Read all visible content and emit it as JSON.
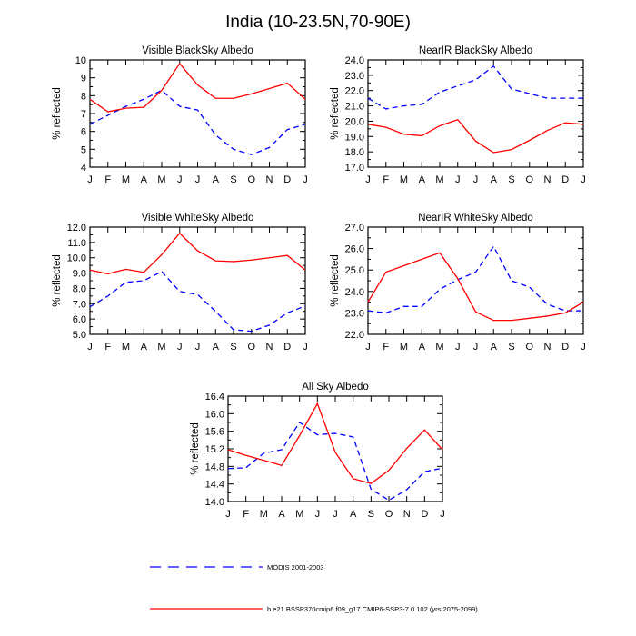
{
  "figure": {
    "title": "India (10-23.5N,70-90E)"
  },
  "legend": [
    {
      "label": "MODIS 2001-2003",
      "color": "#0000ff",
      "dash": "dashed"
    },
    {
      "label": "b.e21.BSSP370cmip6.f09_g17.CMIP6-SSP3-7.0.102 (yrs 2075-2099)",
      "color": "#ff0000",
      "dash": "solid"
    }
  ],
  "chart_data": [
    {
      "type": "line",
      "title": "Visible BlackSky Albedo",
      "ylabel": "% reflected",
      "xlabel": "",
      "categories": [
        "J",
        "F",
        "M",
        "A",
        "M",
        "J",
        "J",
        "A",
        "S",
        "O",
        "N",
        "D",
        "J"
      ],
      "ylim": [
        4,
        10
      ],
      "yticks": [
        4,
        5,
        6,
        7,
        8,
        9,
        10
      ],
      "ytick_labels": [
        "4",
        "5",
        "6",
        "7",
        "8",
        "9",
        "10"
      ],
      "grid": false,
      "series": [
        {
          "color": "#0000ff",
          "dash": "dashed",
          "values": [
            6.4,
            6.9,
            7.4,
            7.8,
            8.3,
            7.4,
            7.2,
            5.8,
            5.0,
            4.7,
            5.1,
            6.1,
            6.4
          ]
        },
        {
          "color": "#ff0000",
          "dash": "solid",
          "values": [
            7.8,
            7.1,
            7.3,
            7.35,
            8.3,
            9.8,
            8.6,
            7.85,
            7.85,
            8.1,
            8.4,
            8.7,
            7.8
          ]
        }
      ]
    },
    {
      "type": "line",
      "title": "NearIR BlackSky Albedo",
      "ylabel": "% reflected",
      "xlabel": "",
      "categories": [
        "J",
        "F",
        "M",
        "A",
        "M",
        "J",
        "J",
        "A",
        "S",
        "O",
        "N",
        "D",
        "J"
      ],
      "ylim": [
        17,
        24
      ],
      "yticks": [
        17,
        18,
        19,
        20,
        21,
        22,
        23,
        24
      ],
      "ytick_labels": [
        "17.0",
        "18.0",
        "19.0",
        "20.0",
        "21.0",
        "22.0",
        "23.0",
        "24.0"
      ],
      "grid": false,
      "series": [
        {
          "color": "#0000ff",
          "dash": "dashed",
          "values": [
            21.5,
            20.8,
            21.0,
            21.1,
            21.9,
            22.3,
            22.7,
            23.6,
            22.1,
            21.8,
            21.5,
            21.5,
            21.5
          ]
        },
        {
          "color": "#ff0000",
          "dash": "solid",
          "values": [
            19.8,
            19.6,
            19.15,
            19.05,
            19.7,
            20.1,
            18.7,
            17.95,
            18.15,
            18.75,
            19.4,
            19.9,
            19.8
          ]
        }
      ]
    },
    {
      "type": "line",
      "title": "Visible WhiteSky Albedo",
      "ylabel": "% reflected",
      "xlabel": "",
      "categories": [
        "J",
        "F",
        "M",
        "A",
        "M",
        "J",
        "J",
        "A",
        "S",
        "O",
        "N",
        "D",
        "J"
      ],
      "ylim": [
        5,
        12
      ],
      "yticks": [
        5,
        6,
        7,
        8,
        9,
        10,
        11,
        12
      ],
      "ytick_labels": [
        "5.0",
        "6.0",
        "7.0",
        "8.0",
        "9.0",
        "10.0",
        "11.0",
        "12.0"
      ],
      "grid": false,
      "series": [
        {
          "color": "#0000ff",
          "dash": "dashed",
          "values": [
            6.8,
            7.5,
            8.4,
            8.5,
            9.1,
            7.8,
            7.6,
            6.5,
            5.3,
            5.2,
            5.6,
            6.4,
            6.85
          ]
        },
        {
          "color": "#ff0000",
          "dash": "solid",
          "values": [
            9.2,
            8.95,
            9.25,
            9.05,
            10.2,
            11.6,
            10.45,
            9.8,
            9.75,
            9.85,
            10.0,
            10.15,
            9.2
          ]
        }
      ]
    },
    {
      "type": "line",
      "title": "NearIR WhiteSky Albedo",
      "ylabel": "% reflected",
      "xlabel": "",
      "categories": [
        "J",
        "F",
        "M",
        "A",
        "M",
        "J",
        "J",
        "A",
        "S",
        "O",
        "N",
        "D",
        "J"
      ],
      "ylim": [
        22,
        27
      ],
      "yticks": [
        22,
        23,
        24,
        25,
        26,
        27
      ],
      "ytick_labels": [
        "22.0",
        "23.0",
        "24.0",
        "25.0",
        "26.0",
        "27.0"
      ],
      "grid": false,
      "series": [
        {
          "color": "#0000ff",
          "dash": "dashed",
          "values": [
            23.1,
            23.0,
            23.3,
            23.3,
            24.1,
            24.55,
            24.9,
            26.1,
            24.5,
            24.2,
            23.4,
            23.1,
            23.1
          ]
        },
        {
          "color": "#ff0000",
          "dash": "solid",
          "values": [
            23.5,
            24.9,
            25.2,
            25.5,
            25.8,
            24.6,
            23.05,
            22.65,
            22.65,
            22.75,
            22.85,
            23.0,
            23.5
          ]
        }
      ]
    },
    {
      "type": "line",
      "title": "All Sky Albedo",
      "ylabel": "% reflected",
      "xlabel": "",
      "categories": [
        "J",
        "F",
        "M",
        "A",
        "M",
        "J",
        "J",
        "A",
        "S",
        "O",
        "N",
        "D",
        "J"
      ],
      "ylim": [
        14.0,
        16.4
      ],
      "yticks": [
        14.0,
        14.4,
        14.8,
        15.2,
        15.6,
        16.0,
        16.4
      ],
      "ytick_labels": [
        "14.0",
        "14.4",
        "14.8",
        "15.2",
        "15.6",
        "16.0",
        "16.4"
      ],
      "grid": false,
      "series": [
        {
          "color": "#0000ff",
          "dash": "dashed",
          "values": [
            14.75,
            14.77,
            15.1,
            15.18,
            15.8,
            15.52,
            15.55,
            15.47,
            14.28,
            14.03,
            14.27,
            14.68,
            14.76
          ]
        },
        {
          "color": "#ff0000",
          "dash": "solid",
          "values": [
            15.18,
            15.05,
            14.94,
            14.82,
            15.5,
            16.23,
            15.12,
            14.52,
            14.41,
            14.71,
            15.21,
            15.63,
            15.18
          ]
        }
      ]
    }
  ]
}
